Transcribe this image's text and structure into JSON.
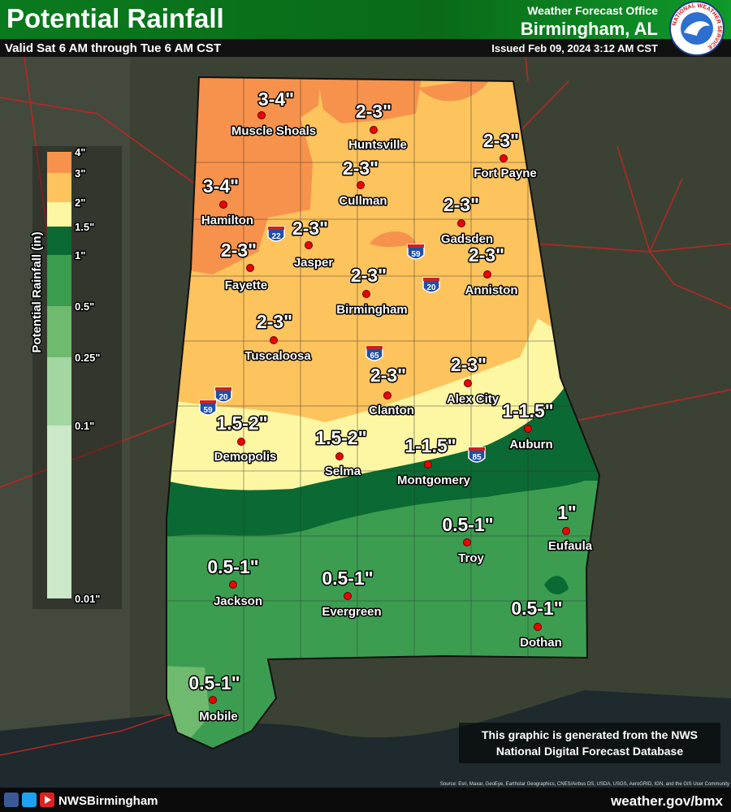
{
  "header": {
    "title": "Potential Rainfall",
    "subtitle": "Valid Sat 6 AM through Tue 6 AM CST",
    "office_line": "Weather Forecast Office",
    "office": "Birmingham, AL",
    "issued": "Issued Feb 09, 2024 3:12 AM CST",
    "logo_text": "NATIONAL WEATHER SERVICE"
  },
  "legend": {
    "title": "Potential Rainfall (in)",
    "labels": [
      "4\"",
      "3\"",
      "2\"",
      "1.5\"",
      "1\"",
      "0.5\"",
      "0.25\"",
      "0.1\"",
      "0.01\""
    ],
    "colors": [
      "#f7924c",
      "#fdc35d",
      "#fdf7a3",
      "#0b6a33",
      "#3c9d51",
      "#6fba6e",
      "#a3d6a0",
      "#cbe8c8"
    ]
  },
  "cities": [
    {
      "name": "Muscle Shoals",
      "amount": "3-4\""
    },
    {
      "name": "Huntsville",
      "amount": "2-3\""
    },
    {
      "name": "Fort Payne",
      "amount": "2-3\""
    },
    {
      "name": "Cullman",
      "amount": "2-3\""
    },
    {
      "name": "Hamilton",
      "amount": "3-4\""
    },
    {
      "name": "Gadsden",
      "amount": "2-3\""
    },
    {
      "name": "Jasper",
      "amount": "2-3\""
    },
    {
      "name": "Fayette",
      "amount": "2-3\""
    },
    {
      "name": "Anniston",
      "amount": "2-3\""
    },
    {
      "name": "Birmingham",
      "amount": "2-3\""
    },
    {
      "name": "Tuscaloosa",
      "amount": "2-3\""
    },
    {
      "name": "Alex City",
      "amount": "2-3\""
    },
    {
      "name": "Clanton",
      "amount": "2-3\""
    },
    {
      "name": "Auburn",
      "amount": "1-1.5\""
    },
    {
      "name": "Demopolis",
      "amount": "1.5-2\""
    },
    {
      "name": "Selma",
      "amount": "1.5-2\""
    },
    {
      "name": "Montgomery",
      "amount": "1-1.5\""
    },
    {
      "name": "Troy",
      "amount": "0.5-1\""
    },
    {
      "name": "Eufaula",
      "amount": "1\""
    },
    {
      "name": "Jackson",
      "amount": "0.5-1\""
    },
    {
      "name": "Evergreen",
      "amount": "0.5-1\""
    },
    {
      "name": "Dothan",
      "amount": "0.5-1\""
    },
    {
      "name": "Mobile",
      "amount": "0.5-1\""
    }
  ],
  "interstates": [
    "22",
    "59",
    "20",
    "65",
    "20",
    "59",
    "85"
  ],
  "note": [
    "This graphic is generated from the NWS",
    "National Digital Forecast Database"
  ],
  "credit": "Source: Esri, Maxar, GeoEye, Earthstar Geographics, CNES/Airbus DS, USDA, USGS, AeroGRID, IGN, and the GIS User Community",
  "footer": {
    "handle": "NWSBirmingham",
    "website": "weather.gov/bmx"
  }
}
